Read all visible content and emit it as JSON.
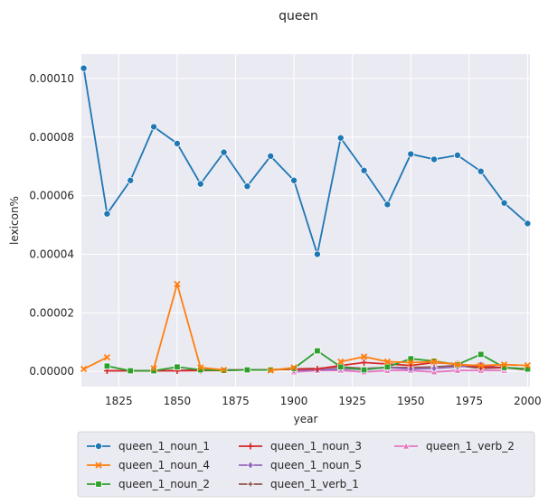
{
  "chart_data": {
    "type": "line",
    "title": "queen",
    "xlabel": "year",
    "ylabel": "lexicon%",
    "xlim": [
      1809,
      2001
    ],
    "ylim": [
      -5.2e-06,
      0.0001083
    ],
    "x_ticks": [
      1825,
      1850,
      1875,
      1900,
      1925,
      1950,
      1975,
      2000
    ],
    "x_tick_labels": [
      "1825",
      "1850",
      "1875",
      "1900",
      "1925",
      "1950",
      "1975",
      "2000"
    ],
    "y_ticks": [
      0,
      2e-05,
      4e-05,
      6e-05,
      8e-05,
      0.0001
    ],
    "y_tick_labels": [
      "0.00000",
      "0.00002",
      "0.00004",
      "0.00006",
      "0.00008",
      "0.00010"
    ],
    "grid": true,
    "legend_placement": "bottom, below the plot",
    "background": "#eaeaf2",
    "x": [
      1810,
      1820,
      1830,
      1840,
      1850,
      1860,
      1870,
      1880,
      1890,
      1900,
      1910,
      1920,
      1930,
      1940,
      1950,
      1960,
      1970,
      1980,
      1990,
      2000
    ],
    "series": [
      {
        "name": "queen_1_noun_1",
        "color": "#1f77b4",
        "marker": "circle",
        "values": [
          0.0001035,
          5.38e-05,
          6.52e-05,
          8.35e-05,
          7.78e-05,
          6.4e-05,
          7.48e-05,
          6.32e-05,
          7.35e-05,
          6.52e-05,
          4e-05,
          7.97e-05,
          6.86e-05,
          5.7e-05,
          7.42e-05,
          7.24e-05,
          7.38e-05,
          6.83e-05,
          5.75e-05,
          5.05e-05
        ]
      },
      {
        "name": "queen_1_noun_4",
        "color": "#ff7f0e",
        "marker": "x",
        "values": [
          8e-07,
          4.8e-06,
          null,
          1e-06,
          2.98e-05,
          1.3e-06,
          5e-07,
          null,
          3e-07,
          1.3e-06,
          null,
          3.3e-06,
          5e-06,
          3.3e-06,
          3e-06,
          3.3e-06,
          2.3e-06,
          2e-06,
          2.3e-06,
          2e-06
        ]
      },
      {
        "name": "queen_1_noun_2",
        "color": "#2ca02c",
        "marker": "square",
        "values": [
          null,
          1.8e-06,
          2e-07,
          2e-07,
          1.5e-06,
          5e-07,
          3e-07,
          5e-07,
          5e-07,
          1e-06,
          7e-06,
          1.5e-06,
          5e-07,
          1.5e-06,
          4.3e-06,
          3.5e-06,
          2.3e-06,
          5.8e-06,
          1.3e-06,
          8e-07
        ]
      },
      {
        "name": "queen_1_noun_3",
        "color": "#d62728",
        "marker": "plus",
        "values": [
          null,
          2e-07,
          2e-07,
          2e-07,
          2e-07,
          3e-07,
          3e-07,
          5e-07,
          5e-07,
          8e-07,
          8e-07,
          2e-06,
          3e-06,
          2.5e-06,
          2e-06,
          3e-06,
          2.5e-06,
          1.5e-06,
          1.3e-06,
          8e-07
        ]
      },
      {
        "name": "queen_1_noun_5",
        "color": "#9467bd",
        "marker": "diamond",
        "values": [
          null,
          null,
          null,
          null,
          null,
          null,
          null,
          null,
          null,
          3e-07,
          5e-07,
          8e-07,
          8e-07,
          1.3e-06,
          8e-07,
          1e-06,
          1.5e-06,
          2.3e-06,
          1e-06,
          null
        ]
      },
      {
        "name": "queen_1_verb_1",
        "color": "#8c564b",
        "marker": "star",
        "values": [
          null,
          2e-07,
          2e-07,
          2e-07,
          3e-07,
          5e-07,
          5e-07,
          5e-07,
          5e-07,
          8e-07,
          1e-06,
          1.5e-06,
          1e-06,
          1.3e-06,
          1.3e-06,
          1.5e-06,
          2e-06,
          1e-06,
          1.3e-06,
          5e-07
        ]
      },
      {
        "name": "queen_1_verb_2",
        "color": "#e377c2",
        "marker": "triangle",
        "values": [
          null,
          null,
          null,
          null,
          null,
          null,
          null,
          null,
          null,
          -2e-07,
          3e-07,
          3e-07,
          -2e-07,
          3e-07,
          3e-07,
          -2e-07,
          3e-07,
          3e-07,
          3e-07,
          null
        ]
      }
    ]
  }
}
